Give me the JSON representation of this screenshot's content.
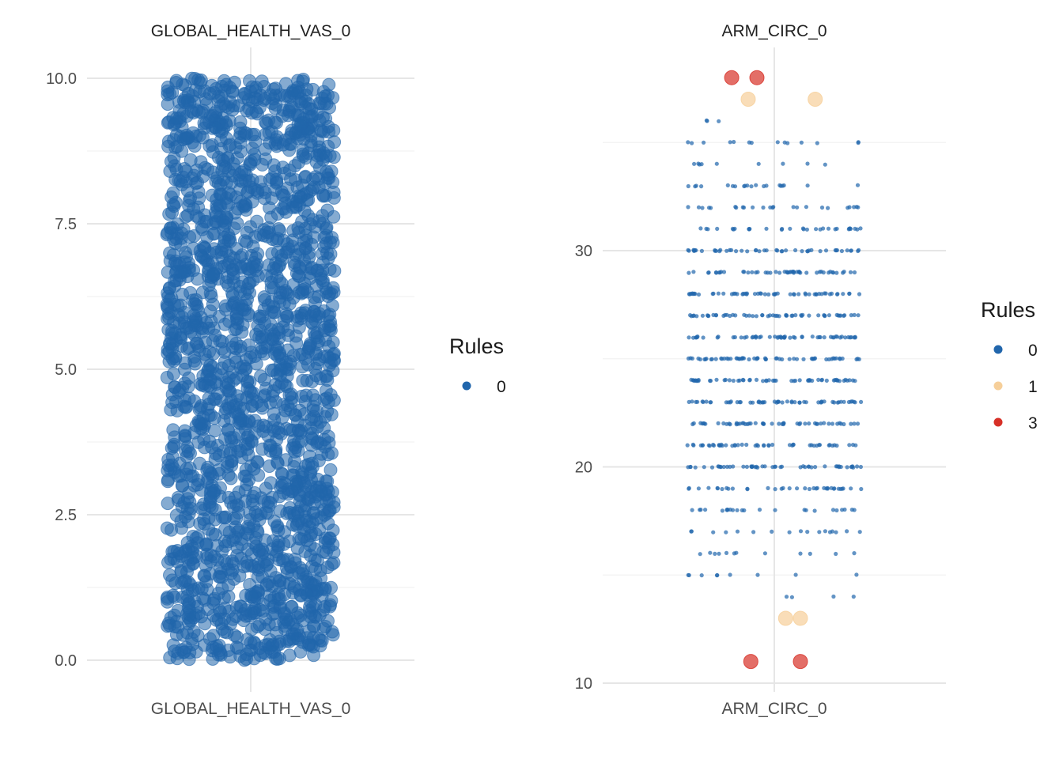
{
  "colors": {
    "rule_0": "#2166ac",
    "rule_1": "#f6cf9a",
    "rule_3": "#d73027",
    "grid_major": "#e6e6e6",
    "grid_minor": "#f2f2f2",
    "background": "#ffffff"
  },
  "chart_data": [
    {
      "type": "scatter",
      "style": "jitter strip plot",
      "title": "GLOBAL_HEALTH_VAS_0",
      "category": "GLOBAL_HEALTH_VAS_0",
      "ylim": [
        0,
        10
      ],
      "y_ticks": [
        0.0,
        2.5,
        5.0,
        7.5,
        10.0
      ],
      "y_tick_labels": [
        "0.0",
        "2.5",
        "5.0",
        "7.5",
        "10.0"
      ],
      "y_distribution": "uniform continuous from 0.0 to 10.0",
      "grid": true,
      "legend": {
        "title": "Rules",
        "placement": "right",
        "entries": [
          {
            "label": "0",
            "color_key": "rule_0"
          }
        ]
      },
      "series": [
        {
          "name": "0",
          "color_key": "rule_0",
          "approx_point_count": 2000
        }
      ]
    },
    {
      "type": "scatter",
      "style": "jitter strip plot",
      "title": "ARM_CIRC_0",
      "category": "ARM_CIRC_0",
      "ylim": [
        9.5,
        38.5
      ],
      "y_ticks": [
        10,
        20,
        30
      ],
      "y_tick_labels": [
        "10",
        "20",
        "30"
      ],
      "y_minor_ticks": [
        15,
        25,
        35
      ],
      "grid": true,
      "legend": {
        "title": "Rules",
        "placement": "right",
        "entries": [
          {
            "label": "0",
            "color_key": "rule_0"
          },
          {
            "label": "1",
            "color_key": "rule_1"
          },
          {
            "label": "3",
            "color_key": "rule_3"
          }
        ]
      },
      "value_counts_rule_0": [
        {
          "y": 14,
          "n": 4
        },
        {
          "y": 15,
          "n": 9
        },
        {
          "y": 16,
          "n": 12
        },
        {
          "y": 17,
          "n": 17
        },
        {
          "y": 18,
          "n": 24
        },
        {
          "y": 19,
          "n": 36
        },
        {
          "y": 20,
          "n": 50
        },
        {
          "y": 21,
          "n": 48
        },
        {
          "y": 22,
          "n": 52
        },
        {
          "y": 23,
          "n": 55
        },
        {
          "y": 24,
          "n": 55
        },
        {
          "y": 25,
          "n": 58
        },
        {
          "y": 26,
          "n": 56
        },
        {
          "y": 27,
          "n": 55
        },
        {
          "y": 28,
          "n": 54
        },
        {
          "y": 29,
          "n": 50
        },
        {
          "y": 30,
          "n": 46
        },
        {
          "y": 31,
          "n": 30
        },
        {
          "y": 32,
          "n": 24
        },
        {
          "y": 33,
          "n": 20
        },
        {
          "y": 34,
          "n": 9
        },
        {
          "y": 35,
          "n": 14
        },
        {
          "y": 36,
          "n": 3
        }
      ],
      "series": [
        {
          "name": "1",
          "color_key": "rule_1",
          "points": [
            {
              "x": -0.3,
              "y": 37
            },
            {
              "x": 0.47,
              "y": 37
            },
            {
              "x": 0.13,
              "y": 13
            },
            {
              "x": 0.3,
              "y": 13
            }
          ]
        },
        {
          "name": "3",
          "color_key": "rule_3",
          "points": [
            {
              "x": -0.49,
              "y": 38
            },
            {
              "x": -0.2,
              "y": 38
            },
            {
              "x": -0.27,
              "y": 11
            },
            {
              "x": 0.3,
              "y": 11
            }
          ]
        }
      ]
    }
  ]
}
